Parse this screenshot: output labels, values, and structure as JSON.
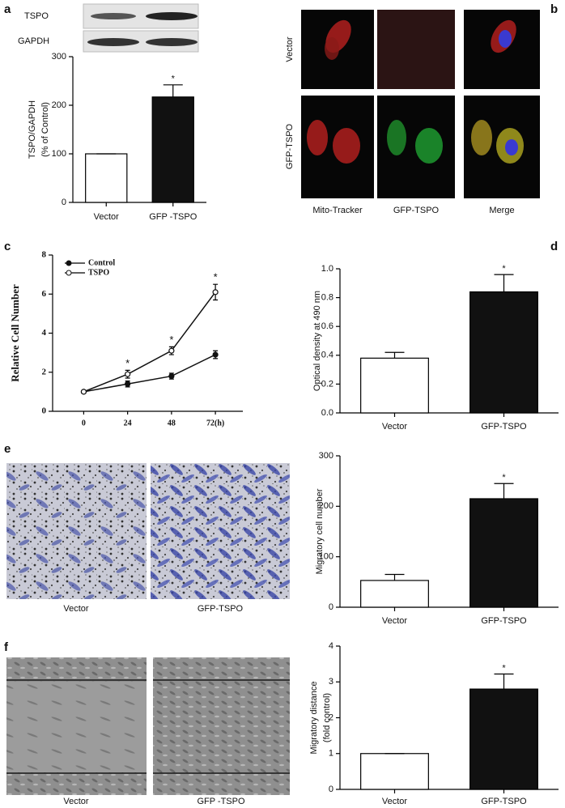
{
  "panel_letters": [
    "a",
    "b",
    "c",
    "d",
    "e",
    "f"
  ],
  "blot_labels": [
    "TSPO",
    "GAPDH"
  ],
  "microscopy": {
    "rows": [
      "Vector",
      "GFP-TSPO"
    ],
    "columns": [
      "Mito-Tracker",
      "GFP-TSPO",
      "Merge"
    ]
  },
  "transwell_captions": [
    "Vector",
    "GFP-TSPO"
  ],
  "wound_captions": [
    "Vector",
    "GFP -TSPO"
  ],
  "chart_data": [
    {
      "type": "bar",
      "categories": [
        "Vector",
        "GFP -TSPO"
      ],
      "values": [
        100,
        217
      ],
      "errors": [
        0,
        25
      ],
      "colors": [
        "#ffffff",
        "#111111"
      ],
      "ylabel": [
        "TSPO/GAPDH",
        "(% of Control)"
      ],
      "ylim": [
        0,
        300
      ],
      "yticks": [
        0,
        100,
        200,
        300
      ],
      "annotations": [
        {
          "text": "*",
          "index": 1
        }
      ]
    },
    {
      "type": "line",
      "x": [
        0,
        24,
        48,
        {
          "value": 72,
          "label": "72(h)"
        }
      ],
      "xlim": [
        -17,
        87
      ],
      "ylim": [
        0,
        8
      ],
      "yticks": [
        0,
        2,
        4,
        6,
        8
      ],
      "ylabel": [
        "Relative Cell Number"
      ],
      "series": [
        {
          "name": "Control",
          "color": "#111111",
          "marker": "filled",
          "values": [
            1,
            1.4,
            1.8,
            2.9
          ],
          "errors": [
            0.05,
            0.15,
            0.15,
            0.2
          ]
        },
        {
          "name": "TSPO",
          "color": "#111111",
          "marker": "open",
          "values": [
            1,
            1.9,
            3.1,
            6.1
          ],
          "errors": [
            0.05,
            0.2,
            0.2,
            0.4
          ]
        }
      ],
      "annotations": [
        {
          "text": "*",
          "index": 1
        },
        {
          "text": "*",
          "index": 2
        },
        {
          "text": "*",
          "index": 3
        }
      ]
    },
    {
      "type": "bar",
      "categories": [
        "Vector",
        "GFP-TSPO"
      ],
      "values": [
        0.38,
        0.84
      ],
      "errors": [
        0.04,
        0.12
      ],
      "colors": [
        "#ffffff",
        "#111111"
      ],
      "ylabel": [
        "Optical density at 490 nm"
      ],
      "ylim": [
        0,
        1
      ],
      "yticks": [
        {
          "value": 0,
          "label": "0.0"
        },
        0.2,
        0.4,
        0.6,
        0.8,
        {
          "value": 1,
          "label": "1.0"
        }
      ],
      "annotations": [
        {
          "text": "*",
          "index": 1
        }
      ]
    },
    {
      "type": "bar",
      "categories": [
        "Vector",
        "GFP-TSPO"
      ],
      "values": [
        53,
        215
      ],
      "errors": [
        12,
        30
      ],
      "colors": [
        "#ffffff",
        "#111111"
      ],
      "ylabel": [
        "Migratory cell number"
      ],
      "ylim": [
        0,
        300
      ],
      "yticks": [
        0,
        100,
        200,
        300
      ],
      "annotations": [
        {
          "text": "*",
          "index": 1
        }
      ]
    },
    {
      "type": "bar",
      "categories": [
        "Vector",
        "GFP-TSPO"
      ],
      "values": [
        1,
        2.8
      ],
      "errors": [
        0,
        0.42
      ],
      "colors": [
        "#ffffff",
        "#111111"
      ],
      "ylabel": [
        "Migratory distance",
        "(fold control)"
      ],
      "ylim": [
        0,
        4
      ],
      "yticks": [
        0,
        1,
        2,
        3,
        4
      ],
      "annotations": [
        {
          "text": "*",
          "index": 1
        }
      ]
    }
  ]
}
